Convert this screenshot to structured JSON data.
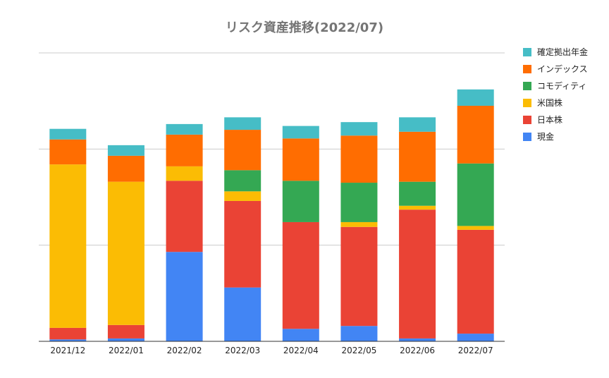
{
  "chart_data": {
    "type": "bar",
    "stacked": true,
    "title": "リスク資産推移(2022/07)",
    "categories": [
      "2021/12",
      "2022/01",
      "2022/02",
      "2022/03",
      "2022/04",
      "2022/05",
      "2022/06",
      "2022/07"
    ],
    "ylim": [
      0,
      300
    ],
    "gridlines": [
      0,
      100,
      200,
      300
    ],
    "grid": true,
    "y_tick_labels_shown": false,
    "legend_position": "right",
    "series": [
      {
        "name": "現金",
        "color": "#4285F4",
        "values": [
          2,
          3,
          93,
          56,
          13,
          16,
          3,
          8
        ]
      },
      {
        "name": "日本株",
        "color": "#EA4335",
        "values": [
          12,
          14,
          74,
          90,
          111,
          103,
          134,
          108
        ]
      },
      {
        "name": "米国株",
        "color": "#FBBC04",
        "values": [
          170,
          149,
          15,
          10,
          0,
          5,
          4,
          4
        ]
      },
      {
        "name": "コモディティ",
        "color": "#34A853",
        "values": [
          0,
          0,
          0,
          22,
          43,
          41,
          25,
          65
        ]
      },
      {
        "name": "インデックス",
        "color": "#FF6D01",
        "values": [
          26,
          27,
          33,
          42,
          44,
          49,
          52,
          60
        ]
      },
      {
        "name": "確定拠出年金",
        "color": "#46BDC6",
        "values": [
          11,
          11,
          11,
          13,
          13,
          14,
          15,
          17
        ]
      }
    ]
  }
}
